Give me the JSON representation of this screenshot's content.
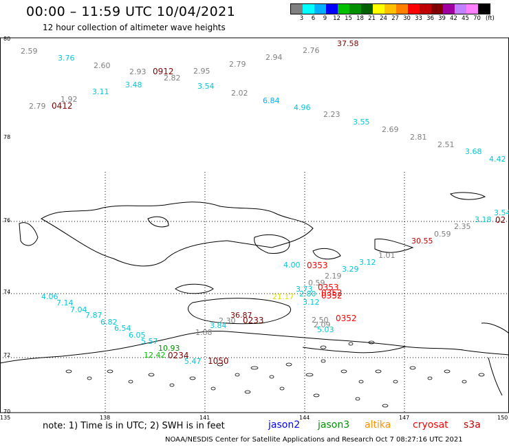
{
  "title": "00:00 – 11:59 UTC 10/04/2021",
  "subtitle": "12 hour collection of altimeter wave heights",
  "colorbar": {
    "unit_label": "(ft)",
    "ticks": [
      "3",
      "6",
      "9",
      "12",
      "15",
      "18",
      "21",
      "24",
      "27",
      "30",
      "33",
      "36",
      "39",
      "42",
      "45",
      "70"
    ],
    "colors": [
      "#808080",
      "#00ffff",
      "#00b0ff",
      "#0000ff",
      "#00c000",
      "#009000",
      "#006000",
      "#ffff00",
      "#ffc000",
      "#ff8000",
      "#ff0000",
      "#c00000",
      "#800000",
      "#a000a0",
      "#c080ff",
      "#ff80ff",
      "#000000"
    ]
  },
  "lat_labels": [
    "80",
    "78",
    "76",
    "74",
    "72",
    "70"
  ],
  "lon_labels": [
    "135",
    "138",
    "141",
    "144",
    "147",
    "150"
  ],
  "note": "note:  1) Time is in UTC;  2) SWH is in feet",
  "legend": [
    {
      "label": "jason2",
      "color": "#0000ff"
    },
    {
      "label": "jason3",
      "color": "#009000"
    },
    {
      "label": "altika",
      "color": "#ff9000"
    },
    {
      "label": "cryosat",
      "color": "#ff0000"
    },
    {
      "label": "s3a",
      "color": "#c00000"
    }
  ],
  "credit": "NOAA/NESDIS Center for Satellite Applications and Research     Oct  7 08:27:16 UTC 2021",
  "wave_values": [
    {
      "text": "2.59",
      "color": "#808080"
    },
    {
      "text": "3.76",
      "color": "#00c8d8"
    },
    {
      "text": "2.60",
      "color": "#808080"
    },
    {
      "text": "2.93",
      "color": "#808080"
    },
    {
      "text": "2.95",
      "color": "#808080"
    },
    {
      "text": "2.79",
      "color": "#808080"
    },
    {
      "text": "2.94",
      "color": "#808080"
    },
    {
      "text": "2.76",
      "color": "#808080"
    },
    {
      "text": "37.58",
      "color": "#800000"
    },
    {
      "text": "2.82",
      "color": "#808080"
    },
    {
      "text": "3.48",
      "color": "#00c8d8"
    },
    {
      "text": "3.54",
      "color": "#00c8d8"
    },
    {
      "text": "3.11",
      "color": "#00c8d8"
    },
    {
      "text": "2.02",
      "color": "#808080"
    },
    {
      "text": "1.92",
      "color": "#808080"
    },
    {
      "text": "2.79",
      "color": "#808080"
    },
    {
      "text": "6.84",
      "color": "#00b0ff"
    },
    {
      "text": "4.96",
      "color": "#00c8d8"
    },
    {
      "text": "2.23",
      "color": "#808080"
    },
    {
      "text": "3.55",
      "color": "#00c8d8"
    },
    {
      "text": "2.69",
      "color": "#808080"
    },
    {
      "text": "2.81",
      "color": "#808080"
    },
    {
      "text": "2.51",
      "color": "#808080"
    },
    {
      "text": "3.68",
      "color": "#00c8d8"
    },
    {
      "text": "4.42",
      "color": "#00c8d8"
    },
    {
      "text": "3.54",
      "color": "#00c8d8"
    },
    {
      "text": "3.18",
      "color": "#00c8d8"
    },
    {
      "text": "2.35",
      "color": "#808080"
    },
    {
      "text": "0.59",
      "color": "#808080"
    },
    {
      "text": "30.55",
      "color": "#c00000"
    },
    {
      "text": "1.01",
      "color": "#808080"
    },
    {
      "text": "3.12",
      "color": "#00c8d8"
    },
    {
      "text": "3.29",
      "color": "#00c8d8"
    },
    {
      "text": "4.00",
      "color": "#00c8d8"
    },
    {
      "text": "2.19",
      "color": "#808080"
    },
    {
      "text": "0.59",
      "color": "#808080"
    },
    {
      "text": "21.17",
      "color": "#e0e000"
    },
    {
      "text": "2.80",
      "color": "#00c8d8"
    },
    {
      "text": "3.12",
      "color": "#00c8d8"
    },
    {
      "text": "3.73",
      "color": "#00c8d8"
    },
    {
      "text": "4.06",
      "color": "#00c8d8"
    },
    {
      "text": "7.14",
      "color": "#00c8d8"
    },
    {
      "text": "7.04",
      "color": "#00c8d8"
    },
    {
      "text": "7.87",
      "color": "#00c8d8"
    },
    {
      "text": "6.82",
      "color": "#00c8d8"
    },
    {
      "text": "6.54",
      "color": "#00c8d8"
    },
    {
      "text": "6.05",
      "color": "#00c8d8"
    },
    {
      "text": "5.57",
      "color": "#00c8d8"
    },
    {
      "text": "10.93",
      "color": "#009000"
    },
    {
      "text": "12.42",
      "color": "#00c000"
    },
    {
      "text": "5.47",
      "color": "#00c8d8"
    },
    {
      "text": "36.87",
      "color": "#800000"
    },
    {
      "text": "2.30",
      "color": "#808080"
    },
    {
      "text": "3.84",
      "color": "#00c8d8"
    },
    {
      "text": "1.88",
      "color": "#808080"
    },
    {
      "text": "2.50",
      "color": "#808080"
    },
    {
      "text": "2.09",
      "color": "#808080"
    },
    {
      "text": "5.03",
      "color": "#00c8d8"
    }
  ],
  "time_labels": [
    {
      "text": "0912",
      "color": "#800000"
    },
    {
      "text": "0412",
      "color": "#800000"
    },
    {
      "text": "0353",
      "color": "#ff0000"
    },
    {
      "text": "0353",
      "color": "#ff0000"
    },
    {
      "text": "0352",
      "color": "#ff0000"
    },
    {
      "text": "0352",
      "color": "#ff0000"
    },
    {
      "text": "0352",
      "color": "#ff0000"
    },
    {
      "text": "0233",
      "color": "#800000"
    },
    {
      "text": "0234",
      "color": "#800000"
    },
    {
      "text": "1050",
      "color": "#800000"
    },
    {
      "text": "02",
      "color": "#800000"
    }
  ]
}
